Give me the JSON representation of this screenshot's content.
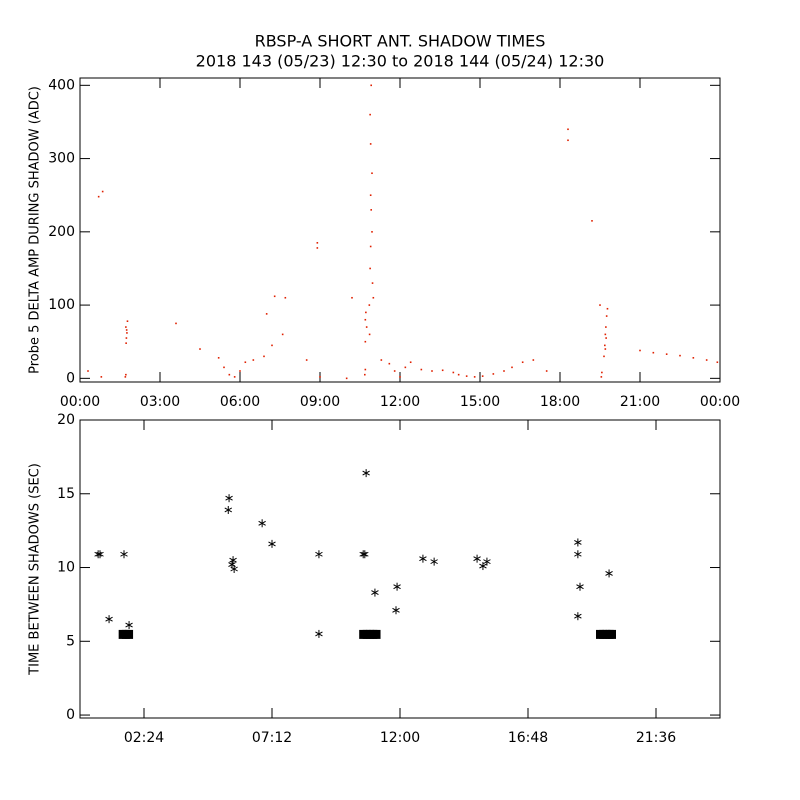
{
  "chart_data": [
    {
      "type": "scatter",
      "title": "RBSP-A SHORT ANT. SHADOW TIMES",
      "subtitle": "2018 143 (05/23) 12:30 to 2018 144 (05/24) 12:30",
      "y_label": "Probe 5 DELTA AMP DURING SHADOW (ADC)",
      "xlim": [
        0,
        24
      ],
      "ylim": [
        -5,
        410
      ],
      "xticks": [
        {
          "value": 0,
          "label": "00:00"
        },
        {
          "value": 3,
          "label": "03:00"
        },
        {
          "value": 6,
          "label": "06:00"
        },
        {
          "value": 9,
          "label": "09:00"
        },
        {
          "value": 12,
          "label": "12:00"
        },
        {
          "value": 15,
          "label": "15:00"
        },
        {
          "value": 18,
          "label": "18:00"
        },
        {
          "value": 21,
          "label": "21:00"
        },
        {
          "value": 24,
          "label": "00:00"
        }
      ],
      "yticks": [
        0,
        100,
        200,
        300,
        400
      ],
      "series": [
        {
          "color": "#e02000",
          "marker": "dot",
          "x": [
            0.3,
            0.7,
            0.85,
            0.8,
            1.7,
            1.72,
            1.73,
            1.74,
            1.75,
            1.76,
            1.78,
            1.72,
            3.6,
            4.5,
            5.2,
            5.4,
            5.6,
            5.8,
            6.0,
            6.2,
            6.5,
            6.9,
            7.2,
            7.6,
            7.0,
            7.3,
            7.7,
            8.5,
            8.9,
            8.9,
            9.0,
            10.0,
            10.2,
            10.68,
            10.7,
            10.7,
            10.7,
            10.72,
            10.75,
            10.85,
            10.86,
            10.88,
            10.88,
            10.9,
            10.9,
            10.9,
            10.92,
            10.92,
            10.95,
            10.95,
            10.97,
            11.0,
            11.3,
            11.6,
            11.8,
            12.0,
            12.2,
            12.4,
            12.8,
            13.2,
            13.6,
            14.0,
            14.2,
            14.5,
            14.8,
            15.1,
            15.5,
            15.9,
            16.2,
            16.6,
            17.0,
            17.5,
            18.3,
            18.3,
            19.2,
            19.5,
            19.55,
            19.57,
            19.65,
            19.68,
            19.7,
            19.7,
            19.72,
            19.73,
            19.75,
            19.78,
            21.0,
            21.5,
            22.0,
            22.5,
            23.0,
            23.5,
            23.9
          ],
          "values": [
            10,
            248,
            255,
            2,
            2,
            5,
            48,
            55,
            66,
            62,
            78,
            70,
            75,
            40,
            28,
            15,
            5,
            2,
            10,
            22,
            25,
            30,
            45,
            60,
            88,
            112,
            110,
            25,
            185,
            178,
            2,
            0,
            110,
            5,
            12,
            50,
            80,
            90,
            70,
            100,
            60,
            150,
            360,
            180,
            320,
            250,
            230,
            400,
            280,
            200,
            130,
            110,
            25,
            20,
            10,
            2,
            15,
            22,
            12,
            10,
            11,
            8,
            5,
            3,
            2,
            3,
            6,
            10,
            15,
            22,
            25,
            10,
            340,
            325,
            215,
            100,
            2,
            8,
            30,
            45,
            60,
            40,
            70,
            55,
            85,
            95,
            38,
            35,
            33,
            31,
            28,
            25,
            22
          ]
        }
      ]
    },
    {
      "type": "scatter",
      "y_label": "TIME BETWEEN SHADOWS (SEC)",
      "xlim": [
        0,
        24
      ],
      "ylim": [
        -0.2,
        20
      ],
      "xticks": [
        {
          "value": 2.4,
          "label": "02:24"
        },
        {
          "value": 7.2,
          "label": "07:12"
        },
        {
          "value": 12,
          "label": "12:00"
        },
        {
          "value": 16.8,
          "label": "16:48"
        },
        {
          "value": 21.6,
          "label": "21:36"
        }
      ],
      "yticks": [
        0,
        5,
        10,
        15,
        20
      ],
      "series": [
        {
          "color": "#000000",
          "marker": "asterisk",
          "x": [
            0.68,
            0.75,
            1.09,
            1.65,
            1.84,
            5.59,
            5.56,
            5.74,
            5.7,
            5.78,
            6.83,
            7.2,
            8.96,
            8.96,
            10.73,
            10.62,
            10.68,
            11.06,
            11.89,
            11.85,
            12.86,
            13.28,
            14.89,
            15.11,
            15.26,
            18.67,
            18.67,
            18.75,
            18.67,
            19.84
          ],
          "values": [
            10.9,
            10.9,
            6.5,
            10.9,
            6.1,
            14.7,
            13.9,
            10.5,
            10.2,
            9.9,
            13.0,
            11.6,
            10.9,
            5.5,
            16.4,
            10.9,
            10.9,
            8.3,
            8.7,
            7.1,
            10.6,
            10.4,
            10.6,
            10.1,
            10.4,
            11.7,
            10.9,
            8.7,
            6.7,
            9.6
          ]
        },
        {
          "color": "#000000",
          "marker": "square",
          "x": [
            1.6,
            1.72,
            1.84,
            10.62,
            10.75,
            10.88,
            11.0,
            11.12,
            19.5,
            19.62,
            19.74,
            19.86,
            19.95
          ],
          "values": [
            5.5,
            5.5,
            5.5,
            5.5,
            5.5,
            5.5,
            5.5,
            5.5,
            5.5,
            5.5,
            5.5,
            5.5,
            5.5
          ]
        }
      ]
    }
  ]
}
